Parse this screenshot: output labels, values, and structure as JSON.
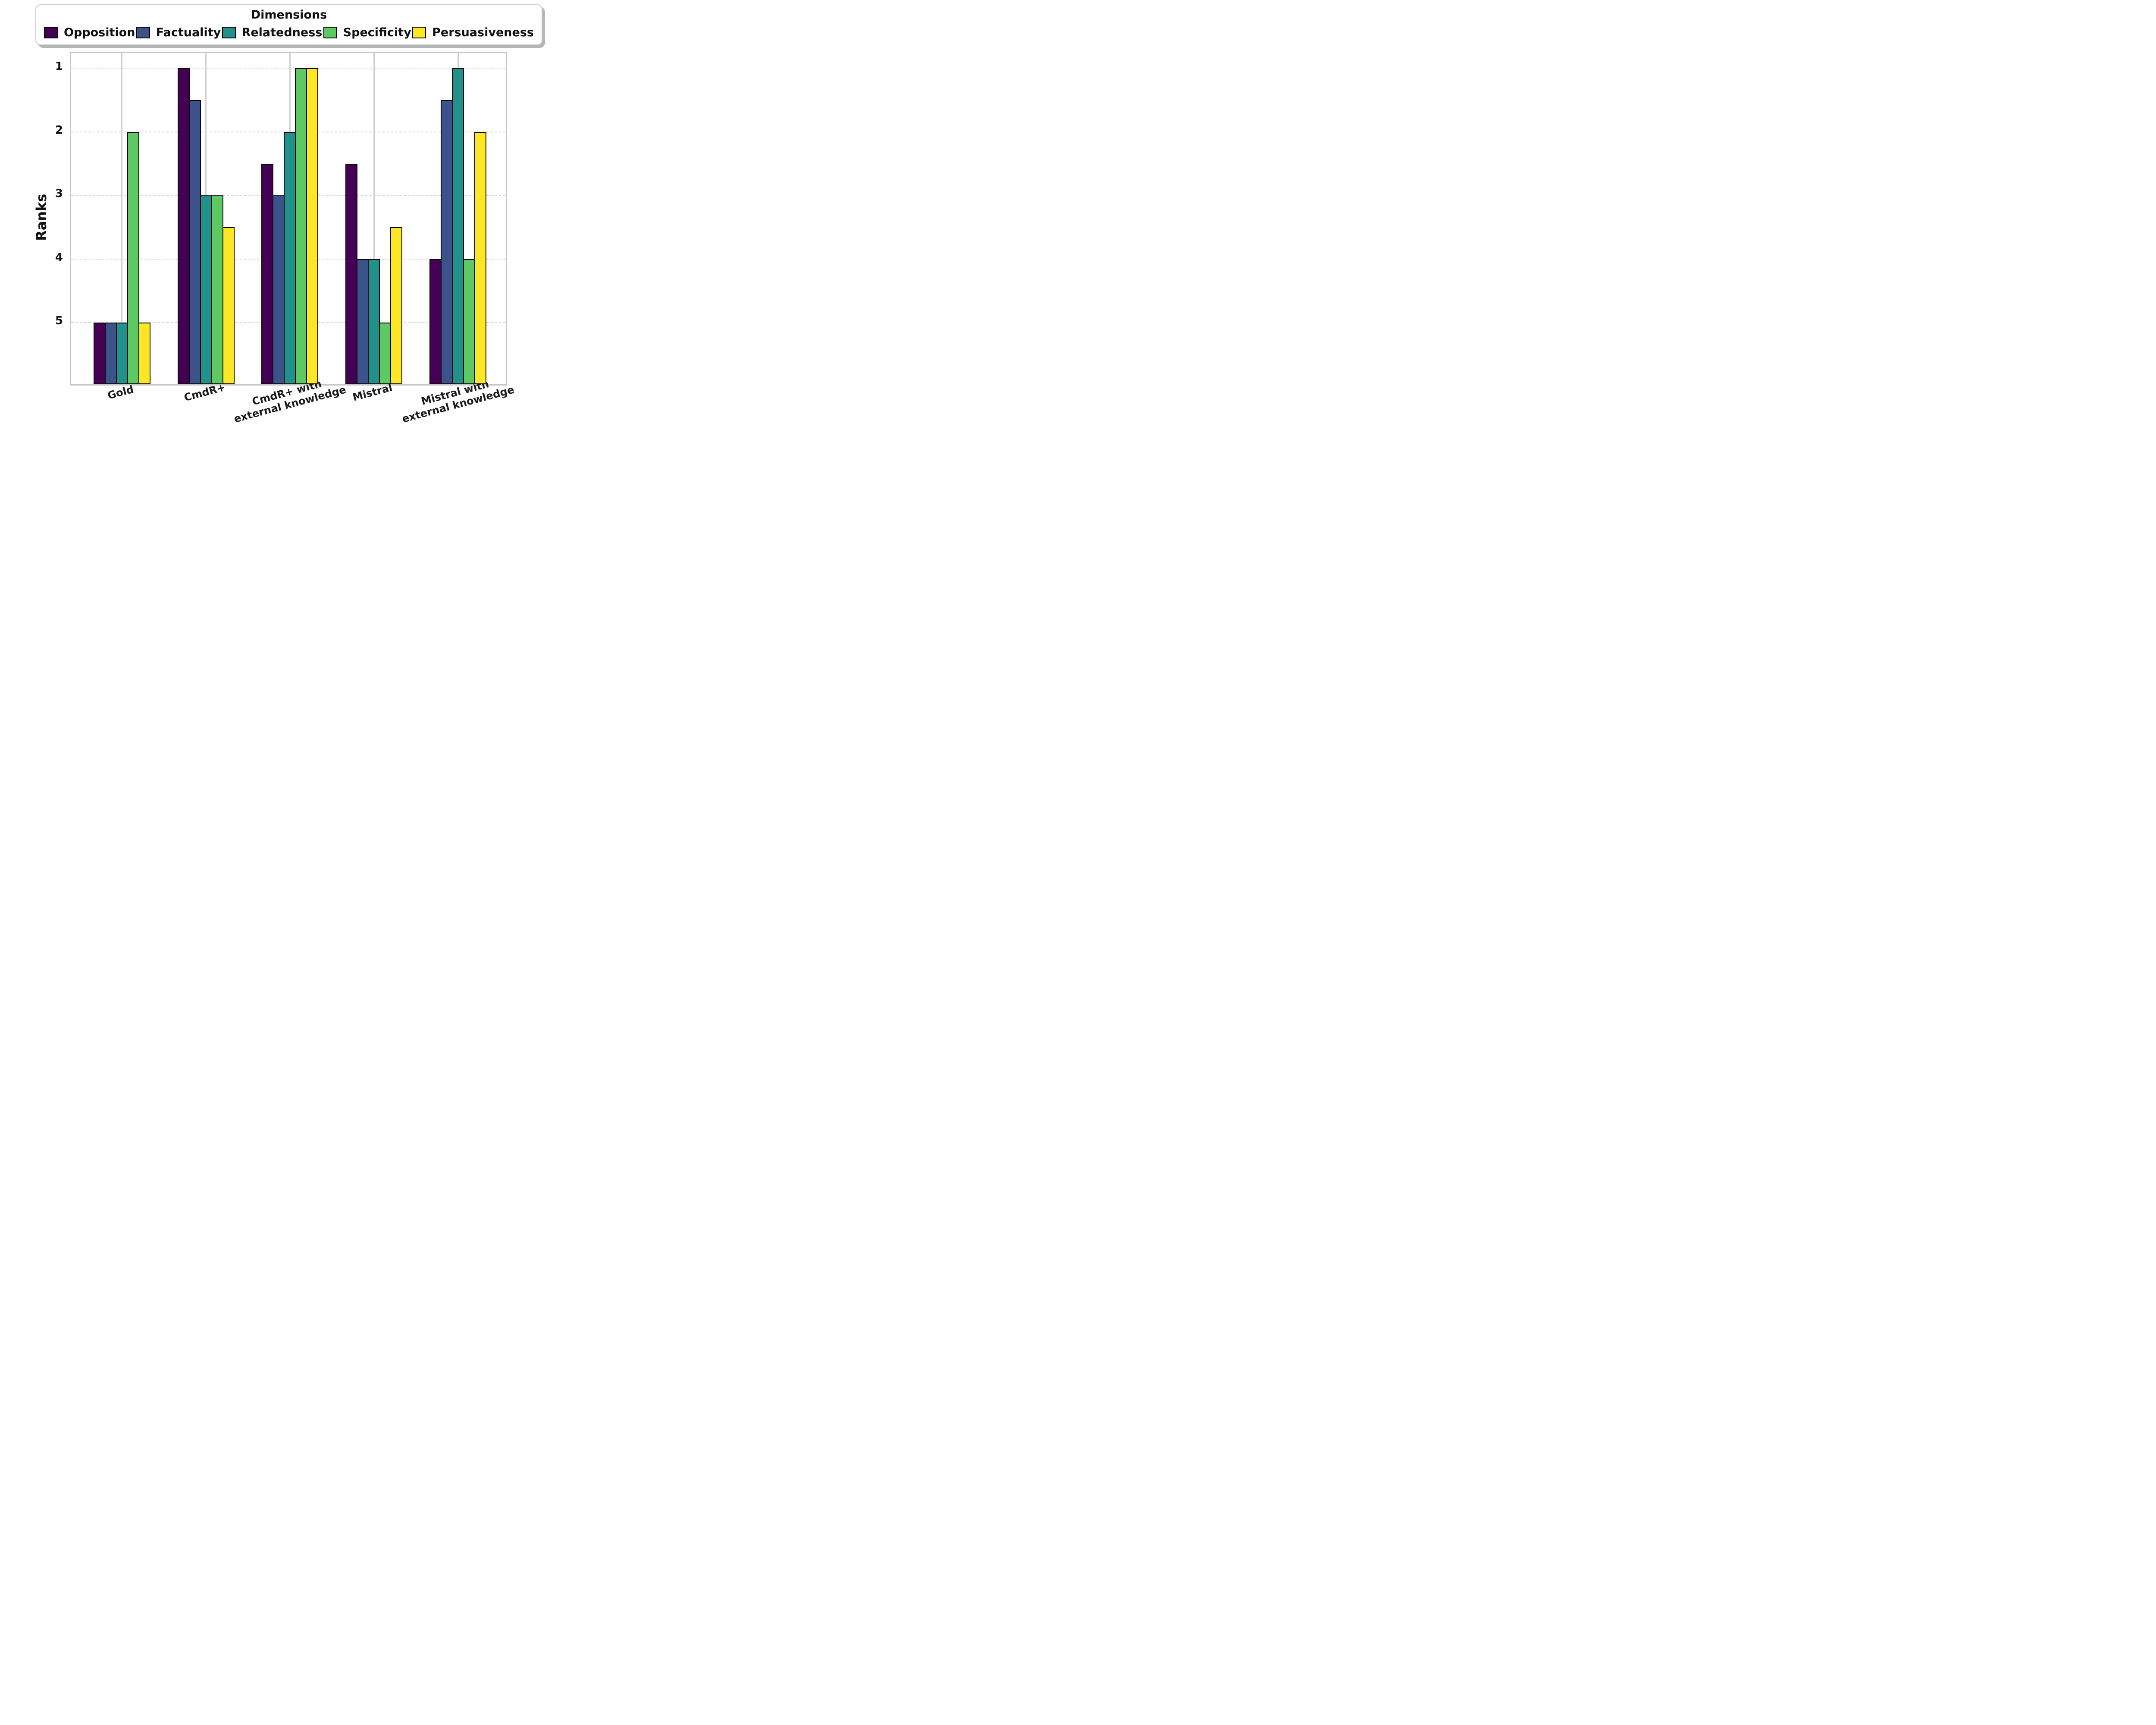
{
  "ui": {
    "background": "#ffffff",
    "text_color": "#111111",
    "bar_edge_color": "#0a0a0a",
    "grid_color": "#d4d4d4",
    "spine_color": "#c6c6c6"
  },
  "legend": {
    "title": "Dimensions",
    "entries": [
      {
        "label": "Opposition",
        "color": "#440154"
      },
      {
        "label": "Factuality",
        "color": "#3b528b"
      },
      {
        "label": "Relatedness",
        "color": "#21918c"
      },
      {
        "label": "Specificity",
        "color": "#5ec962"
      },
      {
        "label": "Persuasiveness",
        "color": "#fde725"
      }
    ]
  },
  "chart_data": {
    "type": "bar",
    "title": "",
    "xlabel": "",
    "ylabel": "Ranks",
    "categories": [
      "Gold",
      "CmdR+",
      "CmdR+ with\nexternal knowledge",
      "Mistral",
      "Mistral with\nexternal knowledge"
    ],
    "series": [
      {
        "name": "Opposition",
        "color": "#440154",
        "values": [
          5,
          1,
          2.5,
          2.5,
          4
        ]
      },
      {
        "name": "Factuality",
        "color": "#3b528b",
        "values": [
          5,
          1.5,
          3,
          4,
          1.5
        ]
      },
      {
        "name": "Relatedness",
        "color": "#21918c",
        "values": [
          5,
          3,
          2,
          4,
          1
        ]
      },
      {
        "name": "Specificity",
        "color": "#5ec962",
        "values": [
          2,
          3,
          1,
          5,
          4
        ]
      },
      {
        "name": "Persuasiveness",
        "color": "#fde725",
        "values": [
          5,
          3.5,
          1,
          3.5,
          2
        ]
      }
    ],
    "y_axis": {
      "label": "Ranks",
      "ticks": [
        1,
        2,
        3,
        4,
        5
      ],
      "inverted": true,
      "top_value": 0.76,
      "bottom_value": 5.97
    },
    "grid": {
      "horizontal": "dashed",
      "vertical": "solid"
    },
    "legend_position": "top",
    "legend_title": "Dimensions"
  }
}
